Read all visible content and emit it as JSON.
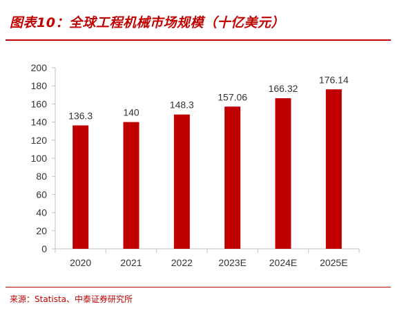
{
  "title": "图表10：全球工程机械市场规模（十亿美元）",
  "source": "来源：Statista、中泰证券研究所",
  "colors": {
    "bar": "#C00000",
    "accent": "#C00000",
    "axis": "#BFBFBF",
    "text": "#333333"
  },
  "chart_data": {
    "type": "bar",
    "title": "全球工程机械市场规模（十亿美元）",
    "xlabel": "",
    "ylabel": "",
    "categories": [
      "2020",
      "2021",
      "2022",
      "2023E",
      "2024E",
      "2025E"
    ],
    "values": [
      136.3,
      140,
      148.3,
      157.06,
      166.32,
      176.14
    ],
    "value_labels": [
      "136.3",
      "140",
      "148.3",
      "157.06",
      "166.32",
      "176.14"
    ],
    "ylim": [
      0,
      200
    ],
    "yticks": [
      0,
      20,
      40,
      60,
      80,
      100,
      120,
      140,
      160,
      180,
      200
    ],
    "grid": false,
    "legend": "none"
  }
}
